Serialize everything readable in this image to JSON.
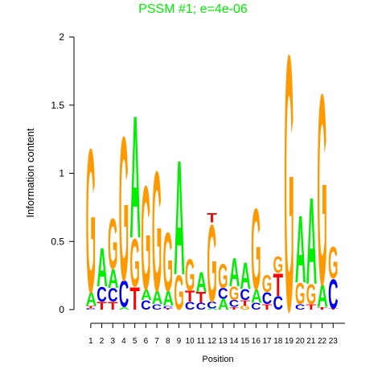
{
  "chart_data": {
    "type": "sequence-logo",
    "title": "PSSM #1; e=4e-06",
    "xlabel": "Position",
    "ylabel": "Information content",
    "ylim": [
      0,
      2
    ],
    "yticks": [
      "0",
      "0.5",
      "1",
      "1.5",
      "2"
    ],
    "positions": [
      "1",
      "2",
      "3",
      "4",
      "5",
      "6",
      "7",
      "8",
      "9",
      "10",
      "11",
      "12",
      "13",
      "14",
      "15",
      "16",
      "17",
      "18",
      "19",
      "20",
      "21",
      "22",
      "23"
    ],
    "colors": {
      "A": "#00ee00",
      "C": "#0000ee",
      "G": "#ff9900",
      "T": "#ff0000"
    },
    "title_color": "#00ee00",
    "columns": [
      [
        {
          "b": "C",
          "h": 0.01
        },
        {
          "b": "T",
          "h": 0.02
        },
        {
          "b": "A",
          "h": 0.1
        },
        {
          "b": "G",
          "h": 1.08
        }
      ],
      [
        {
          "b": "T",
          "h": 0.06
        },
        {
          "b": "C",
          "h": 0.11
        },
        {
          "b": "A",
          "h": 0.29
        }
      ],
      [
        {
          "b": "T",
          "h": 0.06
        },
        {
          "b": "C",
          "h": 0.1
        },
        {
          "b": "A",
          "h": 0.14
        },
        {
          "b": "G",
          "h": 0.38
        }
      ],
      [
        {
          "b": "A",
          "h": 0.02
        },
        {
          "b": "C",
          "h": 0.2
        },
        {
          "b": "G",
          "h": 1.08
        }
      ],
      [
        {
          "b": "T",
          "h": 0.17
        },
        {
          "b": "G",
          "h": 0.36
        },
        {
          "b": "A",
          "h": 0.92
        }
      ],
      [
        {
          "b": "C",
          "h": 0.07
        },
        {
          "b": "A",
          "h": 0.08
        },
        {
          "b": "G",
          "h": 0.78
        }
      ],
      [
        {
          "b": "C",
          "h": 0.04
        },
        {
          "b": "A",
          "h": 0.1
        },
        {
          "b": "G",
          "h": 0.9
        }
      ],
      [
        {
          "b": "T",
          "h": 0.01
        },
        {
          "b": "C",
          "h": 0.02
        },
        {
          "b": "A",
          "h": 0.11
        },
        {
          "b": "G",
          "h": 0.44
        }
      ],
      [
        {
          "b": "G",
          "h": 0.26
        },
        {
          "b": "A",
          "h": 0.86
        }
      ],
      [
        {
          "b": "C",
          "h": 0.06
        },
        {
          "b": "T",
          "h": 0.08
        },
        {
          "b": "G",
          "h": 0.24
        }
      ],
      [
        {
          "b": "C",
          "h": 0.05
        },
        {
          "b": "T",
          "h": 0.08
        },
        {
          "b": "A",
          "h": 0.15
        }
      ],
      [
        {
          "b": "A",
          "h": 0.01
        },
        {
          "b": "C",
          "h": 0.05
        },
        {
          "b": "G",
          "h": 0.58
        },
        {
          "b": "T",
          "h": 0.07
        }
      ],
      [
        {
          "b": "A",
          "h": 0.08
        },
        {
          "b": "C",
          "h": 0.08
        },
        {
          "b": "G",
          "h": 0.18
        }
      ],
      [
        {
          "b": "T",
          "h": 0.02
        },
        {
          "b": "C",
          "h": 0.05
        },
        {
          "b": "G",
          "h": 0.1
        },
        {
          "b": "A",
          "h": 0.21
        }
      ],
      [
        {
          "b": "G",
          "h": 0.03
        },
        {
          "b": "T",
          "h": 0.04
        },
        {
          "b": "C",
          "h": 0.08
        },
        {
          "b": "A",
          "h": 0.2
        }
      ],
      [
        {
          "b": "C",
          "h": 0.05
        },
        {
          "b": "A",
          "h": 0.1
        },
        {
          "b": "G",
          "h": 0.61
        }
      ],
      [
        {
          "b": "T",
          "h": 0.04
        },
        {
          "b": "C",
          "h": 0.09
        },
        {
          "b": "G",
          "h": 0.13
        }
      ],
      [
        {
          "b": "C",
          "h": 0.1
        },
        {
          "b": "T",
          "h": 0.17
        },
        {
          "b": "G",
          "h": 0.12
        }
      ],
      [
        {
          "b": "G",
          "h": 1.92
        }
      ],
      [
        {
          "b": "C",
          "h": 0.04
        },
        {
          "b": "G",
          "h": 0.16
        },
        {
          "b": "A",
          "h": 0.5
        }
      ],
      [
        {
          "b": "T",
          "h": 0.04
        },
        {
          "b": "G",
          "h": 0.15
        },
        {
          "b": "A",
          "h": 0.65
        }
      ],
      [
        {
          "b": "T",
          "h": 0.02
        },
        {
          "b": "A",
          "h": 0.17
        },
        {
          "b": "G",
          "h": 1.43
        }
      ],
      [
        {
          "b": "T",
          "h": 0.01
        },
        {
          "b": "C",
          "h": 0.22
        },
        {
          "b": "G",
          "h": 0.24
        }
      ]
    ]
  }
}
